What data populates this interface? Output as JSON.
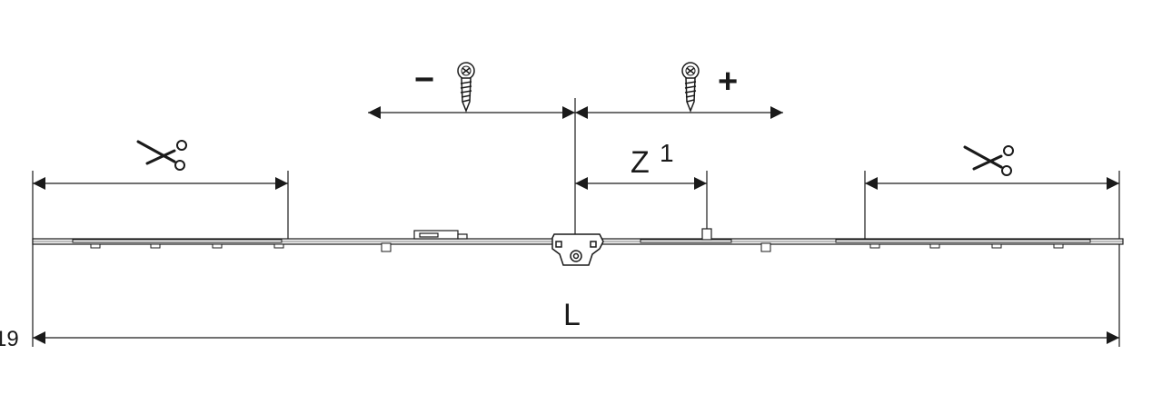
{
  "labels": {
    "minus": "−",
    "plus": "+",
    "z": "Z",
    "z_superscript": "1",
    "length": "L",
    "edge_fragment": "19"
  },
  "icons": {
    "screw": "screw-icon",
    "scissors": "scissors-icon"
  },
  "colors": {
    "line": "#1a1a1a",
    "bar_fill": "#f2f2f2"
  }
}
